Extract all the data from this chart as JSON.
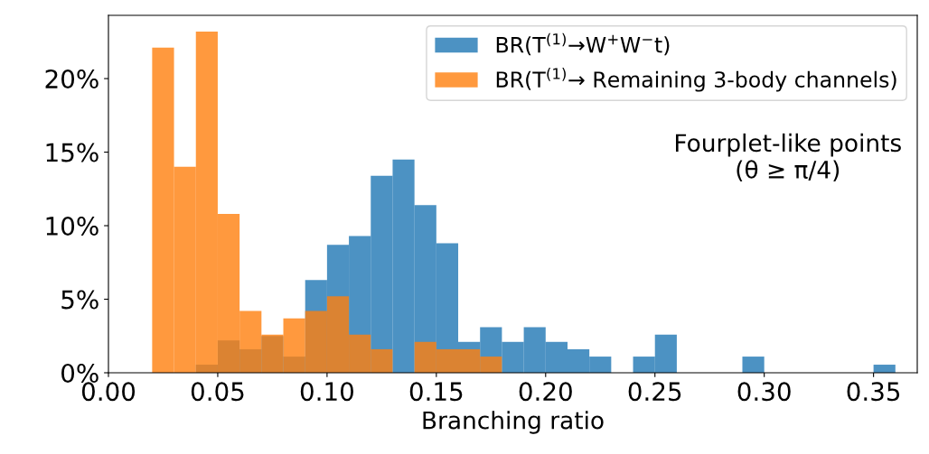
{
  "chart_data": {
    "type": "histogram",
    "xlabel": "Branching ratio",
    "bins": [
      0.02,
      0.03,
      0.04,
      0.05,
      0.06,
      0.07,
      0.08,
      0.09,
      0.1,
      0.11,
      0.12,
      0.13,
      0.14,
      0.15,
      0.16,
      0.17,
      0.18,
      0.19,
      0.2,
      0.21,
      0.22,
      0.23,
      0.24,
      0.25,
      0.26,
      0.27,
      0.28,
      0.29,
      0.3,
      0.31,
      0.32,
      0.33,
      0.34,
      0.35,
      0.36
    ],
    "series": [
      {
        "name": "BR(T$^{(1)}$→W$^{+}$W$^{−}$t)",
        "color": "#1f77b4",
        "values": [
          0,
          0,
          0.55,
          2.2,
          1.6,
          2.5,
          1.1,
          6.3,
          8.7,
          9.3,
          13.4,
          14.5,
          11.4,
          8.8,
          2.1,
          3.1,
          2.1,
          3.1,
          2.1,
          1.6,
          1.1,
          0,
          1.1,
          2.6,
          0,
          0,
          0,
          1.1,
          0,
          0,
          0,
          0,
          0,
          0.55
        ]
      },
      {
        "name": "BR(T$^{(1)}$→ Remaining 3-body channels)",
        "color": "#ff7f0e",
        "values": [
          22.1,
          14.0,
          23.2,
          10.8,
          4.2,
          2.6,
          3.7,
          4.2,
          5.2,
          2.6,
          1.6,
          0,
          2.1,
          1.6,
          1.6,
          1.1,
          0,
          0,
          0,
          0,
          0,
          0,
          0,
          0,
          0,
          0,
          0,
          0,
          0,
          0,
          0,
          0,
          0,
          0
        ]
      }
    ],
    "annotations": [
      "Fourplet-like points\n(θ ≥ π/4)"
    ],
    "xlim": [
      0.0,
      0.37
    ],
    "xticks": [
      {
        "value": 0.0,
        "label": "0.00"
      },
      {
        "value": 0.05,
        "label": "0.05"
      },
      {
        "value": 0.1,
        "label": "0.10"
      },
      {
        "value": 0.15,
        "label": "0.15"
      },
      {
        "value": 0.2,
        "label": "0.20"
      },
      {
        "value": 0.25,
        "label": "0.25"
      },
      {
        "value": 0.3,
        "label": "0.30"
      },
      {
        "value": 0.35,
        "label": "0.35"
      }
    ],
    "ylim": [
      0,
      24.3
    ],
    "yticks": [
      {
        "value": 0,
        "label": "0%"
      },
      {
        "value": 5,
        "label": "5%"
      },
      {
        "value": 10,
        "label": "10%"
      },
      {
        "value": 15,
        "label": "15%"
      },
      {
        "value": 20,
        "label": "20%"
      }
    ],
    "grid": false,
    "legend": "top right"
  }
}
